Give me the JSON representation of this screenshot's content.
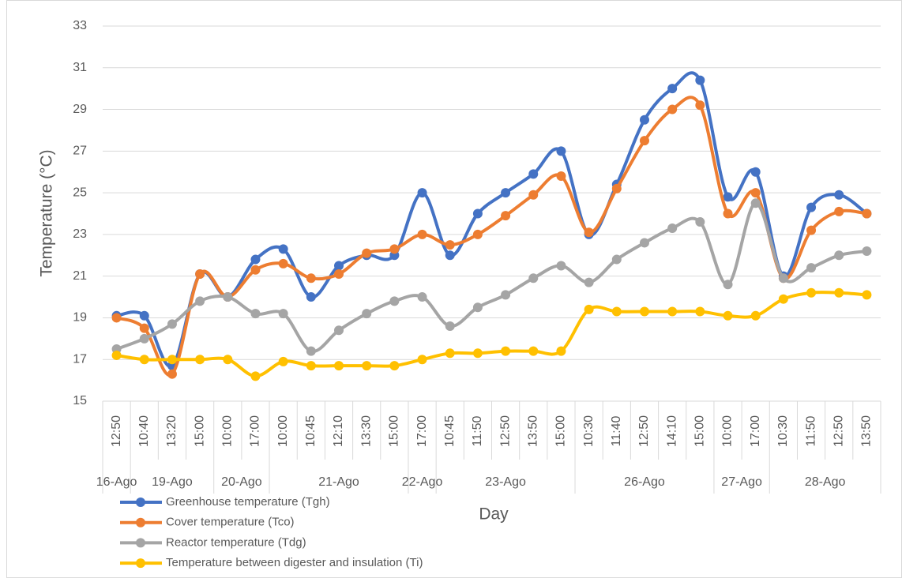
{
  "chart_data": {
    "type": "line",
    "x_label": "Day",
    "y_label": "Temperature (°C)",
    "categories": [
      [
        "16-Ago",
        "12:50"
      ],
      [
        "19-Ago",
        "10:40"
      ],
      [
        null,
        "13:20"
      ],
      [
        null,
        "15:00"
      ],
      [
        "20-Ago",
        "10:00"
      ],
      [
        null,
        "17:00"
      ],
      [
        "21-Ago",
        "10:00"
      ],
      [
        null,
        "10:45"
      ],
      [
        null,
        "12:10"
      ],
      [
        null,
        "13:30"
      ],
      [
        null,
        "15:00"
      ],
      [
        "22-Ago",
        "17:00"
      ],
      [
        "23-Ago",
        "10:45"
      ],
      [
        null,
        "11:50"
      ],
      [
        null,
        "12:50"
      ],
      [
        null,
        "13:50"
      ],
      [
        null,
        "15:00"
      ],
      [
        "26-Ago",
        "10:30"
      ],
      [
        null,
        "11:40"
      ],
      [
        null,
        "12:50"
      ],
      [
        null,
        "14:10"
      ],
      [
        null,
        "15:00"
      ],
      [
        "27-Ago",
        "10:00"
      ],
      [
        null,
        "17:00"
      ],
      [
        "28-Ago",
        "10:30"
      ],
      [
        null,
        "11:50"
      ],
      [
        null,
        "12:50"
      ],
      [
        null,
        "13:50"
      ]
    ],
    "series": [
      {
        "name": "Greenhouse temperature (Tgh)",
        "color": "#4472c4",
        "values": [
          19.1,
          19.1,
          16.7,
          21.1,
          20.0,
          21.8,
          22.3,
          20.0,
          21.5,
          22.0,
          22.0,
          25.0,
          22.0,
          24.0,
          25.0,
          25.9,
          27.0,
          23.0,
          25.4,
          28.5,
          30.0,
          30.4,
          24.8,
          26.0,
          21.0,
          24.3,
          24.9,
          24.0
        ]
      },
      {
        "name": "Cover temperature (Tco)",
        "color": "#ed7d31",
        "values": [
          19.0,
          18.5,
          16.3,
          21.1,
          20.0,
          21.3,
          21.6,
          20.9,
          21.1,
          22.1,
          22.3,
          23.0,
          22.5,
          23.0,
          23.9,
          24.9,
          25.8,
          23.1,
          25.2,
          27.5,
          29.0,
          29.2,
          24.0,
          25.0,
          20.9,
          23.2,
          24.1,
          24.0
        ]
      },
      {
        "name": "Reactor temperature (Tdg)",
        "color": "#a5a5a5",
        "values": [
          17.5,
          18.0,
          18.7,
          19.8,
          20.0,
          19.2,
          19.2,
          17.4,
          18.4,
          19.2,
          19.8,
          20.0,
          18.6,
          19.5,
          20.1,
          20.9,
          21.5,
          20.7,
          21.8,
          22.6,
          23.3,
          23.6,
          20.6,
          24.5,
          20.9,
          21.4,
          22.0,
          22.2
        ]
      },
      {
        "name": "Temperature between digester and insulation (Ti)",
        "color": "#ffc000",
        "values": [
          17.2,
          17.0,
          17.0,
          17.0,
          17.0,
          16.2,
          16.9,
          16.7,
          16.7,
          16.7,
          16.7,
          17.0,
          17.3,
          17.3,
          17.4,
          17.4,
          17.4,
          19.4,
          19.3,
          19.3,
          19.3,
          19.3,
          19.1,
          19.1,
          19.9,
          20.2,
          20.2,
          20.1
        ]
      }
    ],
    "ylim": [
      15,
      33
    ],
    "yticks": [
      15,
      17,
      19,
      21,
      23,
      25,
      27,
      29,
      31,
      33
    ],
    "grid": true,
    "smooth": true,
    "legend": "bottom-left"
  }
}
